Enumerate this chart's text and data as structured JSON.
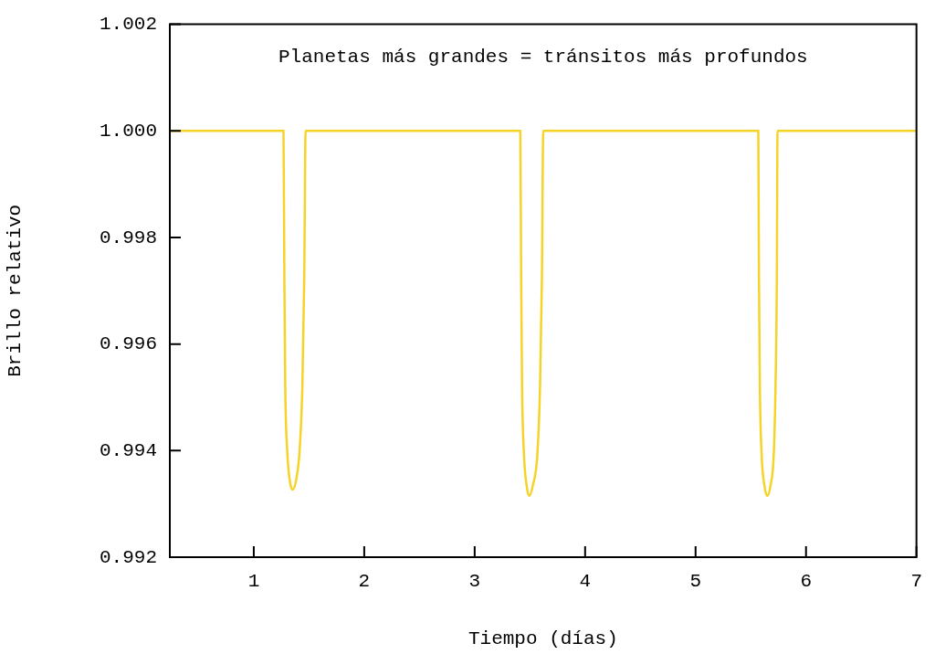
{
  "chart_data": {
    "type": "line",
    "xlabel": "Tiempo (días)",
    "ylabel": "Brillo relativo",
    "annotations": [
      "Planetas más grandes = tránsitos más profundos"
    ],
    "xlim": [
      0.24,
      7
    ],
    "xticks": [
      1,
      2,
      3,
      4,
      5,
      6,
      7
    ],
    "ylim": [
      0.992,
      1.002
    ],
    "yticks": [
      {
        "value": 0.992,
        "label": "0.992"
      },
      {
        "value": 0.994,
        "label": "0.994"
      },
      {
        "value": 0.996,
        "label": "0.996"
      },
      {
        "value": 0.998,
        "label": "0.998"
      },
      {
        "value": 1,
        "label": "1.000"
      },
      {
        "value": 1.002,
        "label": "1.002"
      }
    ],
    "grid": false,
    "legend": false,
    "marker": "none",
    "line_style": "solid",
    "series": [
      {
        "color": "#f5d327",
        "x": [
          0.24,
          1.269,
          1.277,
          1.285,
          1.302,
          1.326,
          1.351,
          1.383,
          1.416,
          1.44,
          1.457,
          1.469,
          3.413,
          3.421,
          3.429,
          3.446,
          3.47,
          3.494,
          3.527,
          3.568,
          3.592,
          3.609,
          3.621,
          5.568,
          5.574,
          5.582,
          5.598,
          5.623,
          5.649,
          5.679,
          5.708,
          5.724,
          5.736,
          5.742,
          7
        ],
        "values": [
          1,
          1,
          0.99724,
          0.99521,
          0.99403,
          0.99344,
          0.99327,
          0.99344,
          0.99403,
          0.99521,
          0.99724,
          1,
          1,
          0.99724,
          0.99521,
          0.99394,
          0.99335,
          0.99315,
          0.99335,
          0.99394,
          0.99521,
          0.99724,
          1,
          1,
          0.99724,
          0.99521,
          0.99394,
          0.99335,
          0.99315,
          0.99335,
          0.99394,
          0.99521,
          0.99724,
          1,
          1
        ]
      }
    ]
  }
}
